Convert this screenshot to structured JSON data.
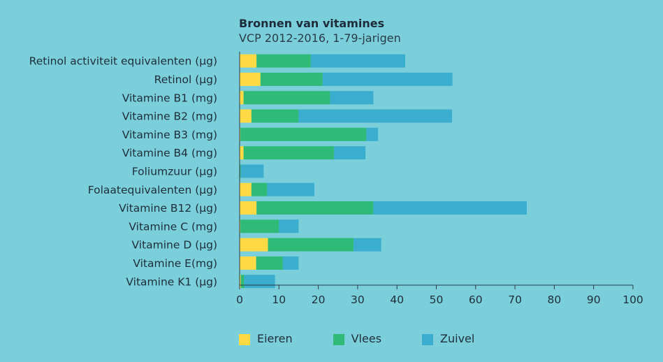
{
  "chart_data": {
    "type": "bar",
    "orientation": "horizontal",
    "stacked": true,
    "title": "Bronnen van vitamines",
    "subtitle": "VCP 2012-2016, 1-79-jarigen",
    "categories": [
      "Retinol activiteit equivalenten (µg)",
      "Retinol (µg)",
      "Vitamine B1 (mg)",
      "Vitamine B2 (mg)",
      "Vitamine B3 (mg)",
      "Vitamine B4 (mg)",
      "Foliumzuur (µg)",
      "Folaatequivalenten (µg)",
      "Vitamine B12 (µg)",
      "Vitamine C (mg)",
      "Vitamine D (µg)",
      "Vitamine E(mg)",
      "Vitamine K1 (µg)"
    ],
    "series": [
      {
        "name": "Eieren",
        "color": "#FFDA44",
        "values": [
          4.3,
          5.3,
          1.0,
          3.0,
          0.2,
          1.0,
          0.1,
          3.0,
          4.3,
          0.2,
          7.2,
          4.2,
          0.3
        ]
      },
      {
        "name": "Vlees",
        "color": "#2FBA78",
        "values": [
          13.8,
          15.8,
          22.0,
          12.0,
          32.0,
          23.0,
          0.2,
          4.0,
          29.7,
          9.8,
          21.8,
          6.8,
          0.9
        ]
      },
      {
        "name": "Zuivel",
        "color": "#3BADCF",
        "values": [
          24.0,
          33.0,
          11.0,
          39.0,
          3.0,
          8.0,
          5.8,
          12.0,
          39.0,
          5.0,
          7.0,
          4.0,
          7.8
        ]
      }
    ],
    "xlim": [
      0,
      100
    ],
    "xticks": [
      0,
      10,
      20,
      30,
      40,
      50,
      60,
      70,
      80,
      90,
      100
    ],
    "xlabel": "",
    "ylabel": "",
    "grid": false,
    "legend_position": "bottom"
  }
}
